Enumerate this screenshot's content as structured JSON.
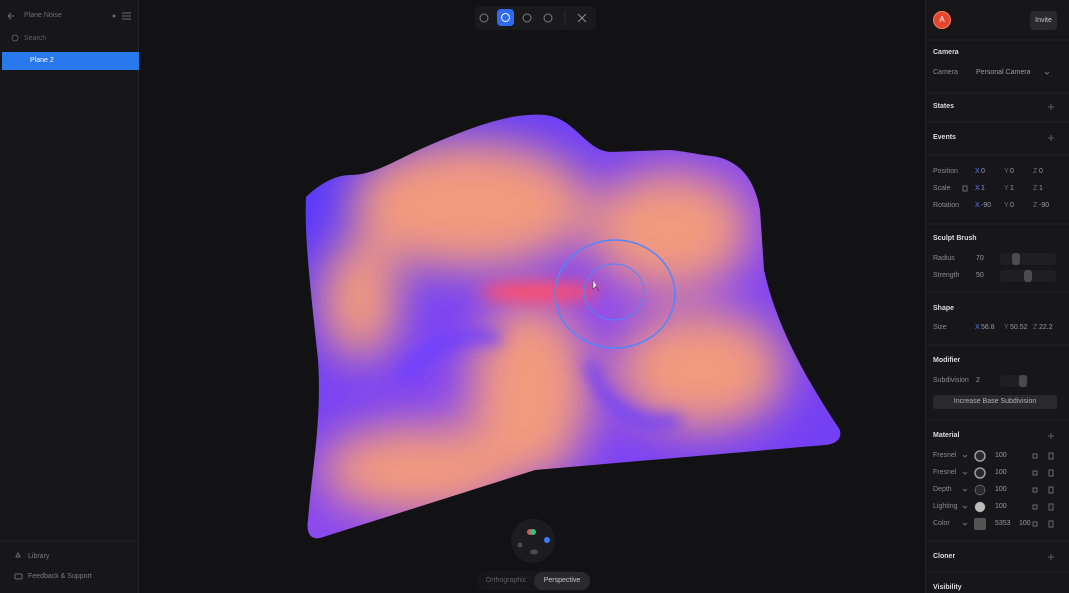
{
  "app": {
    "left_panel": {
      "title": "Plane Noise",
      "search_placeholder": "Search",
      "layers": [
        "Plane 2"
      ],
      "selected_layer": 0,
      "footer": [
        "Library",
        "Feedback & Support"
      ]
    },
    "viewport": {
      "view_modes": [
        "Orthographic",
        "Perspective"
      ],
      "active_view": 1
    },
    "right_panel": {
      "avatar": "A",
      "invite": "Invite",
      "camera": {
        "title": "Camera",
        "label": "Camera",
        "value": "Personal Camera"
      },
      "states": {
        "title": "States"
      },
      "events": {
        "title": "Events"
      },
      "transform": [
        {
          "label": "Position",
          "fields": [
            {
              "axis": "X",
              "value": 0
            },
            {
              "axis": "Y",
              "value": 0
            },
            {
              "axis": "Z",
              "value": 0
            }
          ]
        },
        {
          "label": "Scale",
          "fields": [
            {
              "axis": "X",
              "value": 1
            },
            {
              "axis": "Y",
              "value": 1
            },
            {
              "axis": "Z",
              "value": 1
            }
          ]
        },
        {
          "label": "Rotation",
          "fields": [
            {
              "axis": "X",
              "value": -90
            },
            {
              "axis": "Y",
              "value": 0
            },
            {
              "axis": "Z",
              "value": -90
            }
          ]
        }
      ],
      "sculpt_brush": {
        "title": "Sculpt Brush",
        "params": [
          {
            "label": "Radius",
            "value": 70
          },
          {
            "label": "Strength",
            "value": 50
          }
        ]
      },
      "shape": {
        "title": "Shape",
        "label": "Size",
        "fields": [
          {
            "axis": "X",
            "value": 56.8
          },
          {
            "axis": "Y",
            "value": 50.52
          },
          {
            "axis": "Z",
            "value": 22.2
          }
        ]
      },
      "modifier": {
        "title": "Modifier",
        "label": "Subdivision",
        "value": 2,
        "button": "Increase Base Subdivision"
      },
      "material": {
        "title": "Material",
        "layers": [
          {
            "name": "Fresnel",
            "value": 100
          },
          {
            "name": "Fresnel",
            "value": 100
          },
          {
            "name": "Depth",
            "value": 100
          },
          {
            "name": "Lighting",
            "value": 100
          },
          {
            "name": "Color",
            "hex": "5353",
            "value": 100
          }
        ]
      },
      "cloner": {
        "title": "Cloner"
      },
      "visibility": {
        "title": "Visibility"
      }
    }
  }
}
